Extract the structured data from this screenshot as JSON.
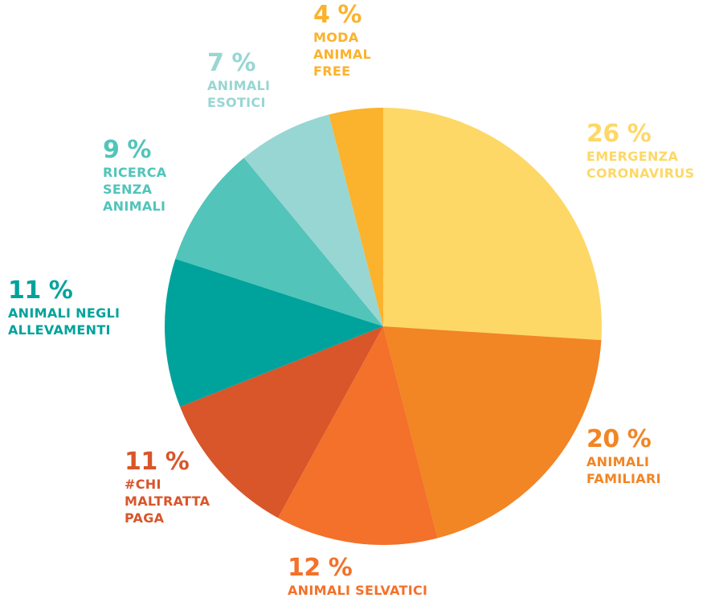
{
  "chart_data": {
    "type": "pie",
    "categories": [
      "EMERGENZA CORONAVIRUS",
      "ANIMALI FAMILIARI",
      "ANIMALI SELVATICI",
      "#CHI MALTRATTA PAGA",
      "ANIMALI NEGLI ALLEVAMENTI",
      "RICERCA SENZA ANIMALI",
      "ANIMALI ESOTICI",
      "MODA ANIMAL FREE"
    ],
    "values": [
      26,
      20,
      12,
      11,
      11,
      9,
      7,
      4
    ],
    "value_labels": [
      "26 %",
      "20 %",
      "12 %",
      "11 %",
      "11 %",
      "9 %",
      "7 %",
      "4 %"
    ],
    "colors": [
      "#fdd866",
      "#f28524",
      "#f3712a",
      "#d9552a",
      "#00a39c",
      "#52c4ba",
      "#98d6d3",
      "#fbb22c"
    ]
  }
}
